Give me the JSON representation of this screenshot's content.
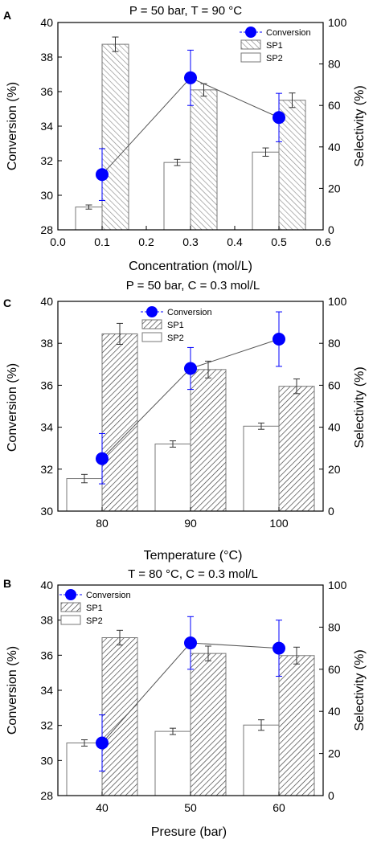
{
  "figure": {
    "panels": [
      {
        "letter": "A",
        "title": "P = 50 bar, T = 90 °C",
        "xlabel": "Concentration (mol/L)",
        "ylabel_left": "Conversion (%)",
        "ylabel_right": "Selectivity (%)",
        "legend": {
          "conversion": "Conversion",
          "sp1": "SP1",
          "sp2": "SP2"
        }
      },
      {
        "letter": "C",
        "title": "P = 50 bar, C = 0.3 mol/L",
        "xlabel": "Temperature (°C)",
        "ylabel_left": "Conversion (%)",
        "ylabel_right": "Selectivity (%)",
        "legend": {
          "conversion": "Conversion",
          "sp1": "SP1",
          "sp2": "SP2"
        }
      },
      {
        "letter": "B",
        "title": "T = 80 °C, C = 0.3 mol/L",
        "xlabel": "Presure (bar)",
        "ylabel_left": "Conversion (%)",
        "ylabel_right": "Selectivity (%)",
        "legend": {
          "conversion": "Conversion",
          "sp1": "SP1",
          "sp2": "SP2"
        }
      }
    ]
  },
  "chart_data": [
    {
      "type": "bar",
      "x_type": "numeric",
      "xlim": [
        0.0,
        0.6
      ],
      "xticks": [
        0.0,
        0.1,
        0.2,
        0.3,
        0.4,
        0.5,
        0.6
      ],
      "xtick_labels": [
        "0.0",
        "0.1",
        "0.2",
        "0.3",
        "0.4",
        "0.5",
        "0.6"
      ],
      "ylim_left": [
        28,
        40
      ],
      "yticks_left": [
        28,
        30,
        32,
        34,
        36,
        38,
        40
      ],
      "ylim_right": [
        0,
        100
      ],
      "yticks_right": [
        0,
        20,
        40,
        60,
        80,
        100
      ],
      "legend_position": "top-right",
      "series": [
        {
          "name": "Conversion",
          "kind": "line-marker",
          "axis": "left",
          "color": "#0000ff",
          "x": [
            0.1,
            0.3,
            0.5
          ],
          "values": [
            31.2,
            36.8,
            34.5
          ],
          "errors": [
            1.5,
            1.6,
            1.4
          ]
        },
        {
          "name": "SP1",
          "kind": "hatched-bar",
          "axis": "right",
          "x": [
            0.1,
            0.3,
            0.5
          ],
          "values": [
            89.5,
            67.5,
            62.5
          ],
          "errors": [
            3.5,
            3.0,
            3.5
          ]
        },
        {
          "name": "SP2",
          "kind": "open-bar",
          "axis": "right",
          "x": [
            0.1,
            0.3,
            0.5
          ],
          "values": [
            11,
            32.5,
            37.5
          ],
          "errors": [
            1.0,
            1.5,
            2.0
          ]
        }
      ]
    },
    {
      "type": "bar",
      "x_type": "categorical",
      "categories": [
        "80",
        "90",
        "100"
      ],
      "ylim_left": [
        30,
        40
      ],
      "yticks_left": [
        30,
        32,
        34,
        36,
        38,
        40
      ],
      "ylim_right": [
        0,
        100
      ],
      "yticks_right": [
        0,
        20,
        40,
        60,
        80,
        100
      ],
      "legend_position": "top-center",
      "series": [
        {
          "name": "Conversion",
          "kind": "line-marker",
          "axis": "left",
          "color": "#0000ff",
          "values": [
            32.5,
            36.8,
            38.2
          ],
          "errors": [
            1.2,
            1.0,
            1.3
          ]
        },
        {
          "name": "SP1",
          "kind": "hatched-bar",
          "axis": "right",
          "values": [
            84.5,
            67.5,
            59.5
          ],
          "errors": [
            5.0,
            4.0,
            3.5
          ]
        },
        {
          "name": "SP2",
          "kind": "open-bar",
          "axis": "right",
          "values": [
            15.5,
            32,
            40.5
          ],
          "errors": [
            2.0,
            1.5,
            1.5
          ]
        }
      ]
    },
    {
      "type": "bar",
      "x_type": "categorical",
      "categories": [
        "40",
        "50",
        "60"
      ],
      "ylim_left": [
        28,
        40
      ],
      "yticks_left": [
        28,
        30,
        32,
        34,
        36,
        38,
        40
      ],
      "ylim_right": [
        0,
        100
      ],
      "yticks_right": [
        0,
        20,
        40,
        60,
        80,
        100
      ],
      "legend_position": "top-left",
      "series": [
        {
          "name": "Conversion",
          "kind": "line-marker",
          "axis": "left",
          "color": "#0000ff",
          "values": [
            31.0,
            36.7,
            36.4
          ],
          "errors": [
            1.6,
            1.5,
            1.6
          ]
        },
        {
          "name": "SP1",
          "kind": "hatched-bar",
          "axis": "right",
          "values": [
            75,
            67.5,
            66.5
          ],
          "errors": [
            3.5,
            3.5,
            4.0
          ]
        },
        {
          "name": "SP2",
          "kind": "open-bar",
          "axis": "right",
          "values": [
            25,
            30.5,
            33.5
          ],
          "errors": [
            1.5,
            1.5,
            2.5
          ]
        }
      ]
    }
  ]
}
